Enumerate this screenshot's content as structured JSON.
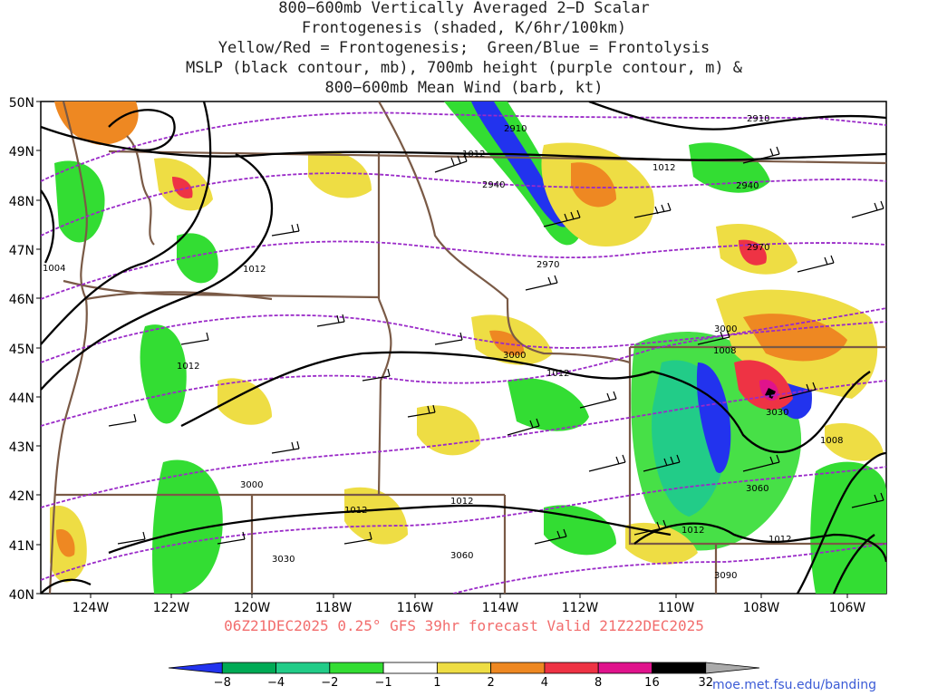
{
  "title_lines": [
    "800−600mb Vertically Averaged 2−D Scalar",
    "Frontogenesis (shaded, K/6hr/100km)",
    "Yellow/Red = Frontogenesis;  Green/Blue = Frontolysis",
    "MSLP (black contour, mb), 700mb height (purple contour, m) &",
    "800−600mb Mean Wind (barb, kt)"
  ],
  "run_info": "06Z21DEC2025 0.25° GFS 39hr forecast Valid 21Z22DEC2025",
  "credit": "moe.met.fsu.edu/banding",
  "lat_labels": [
    "50N",
    "49N",
    "48N",
    "47N",
    "46N",
    "45N",
    "44N",
    "43N",
    "42N",
    "41N",
    "40N"
  ],
  "lon_labels": [
    "124W",
    "122W",
    "120W",
    "118W",
    "116W",
    "114W",
    "112W",
    "110W",
    "108W",
    "106W"
  ],
  "mslp_labels": [
    "1012",
    "1012",
    "1012",
    "1012",
    "1012",
    "1012",
    "1012",
    "1008",
    "1008",
    "1012",
    "1012",
    "1004"
  ],
  "height_labels": [
    "2910",
    "2910",
    "2940",
    "2940",
    "2970",
    "2970",
    "3000",
    "3000",
    "3000",
    "3030",
    "3030",
    "3060",
    "3060",
    "3090"
  ],
  "colorbar": {
    "labels": [
      "−8",
      "−4",
      "−2",
      "−1",
      "1",
      "2",
      "4",
      "8",
      "16",
      "32"
    ],
    "colors": [
      "#2233ee",
      "#00aa55",
      "#22cc88",
      "#33dd33",
      "#ffffff",
      "#eedd44",
      "#ee8822",
      "#ee3344",
      "#e0138c",
      "#000000",
      "#aaaaaa"
    ]
  },
  "colors": {
    "mslp": "#000000",
    "height": "#9a2ac8",
    "borders": "#7a5a46",
    "barbs": "#000000"
  }
}
